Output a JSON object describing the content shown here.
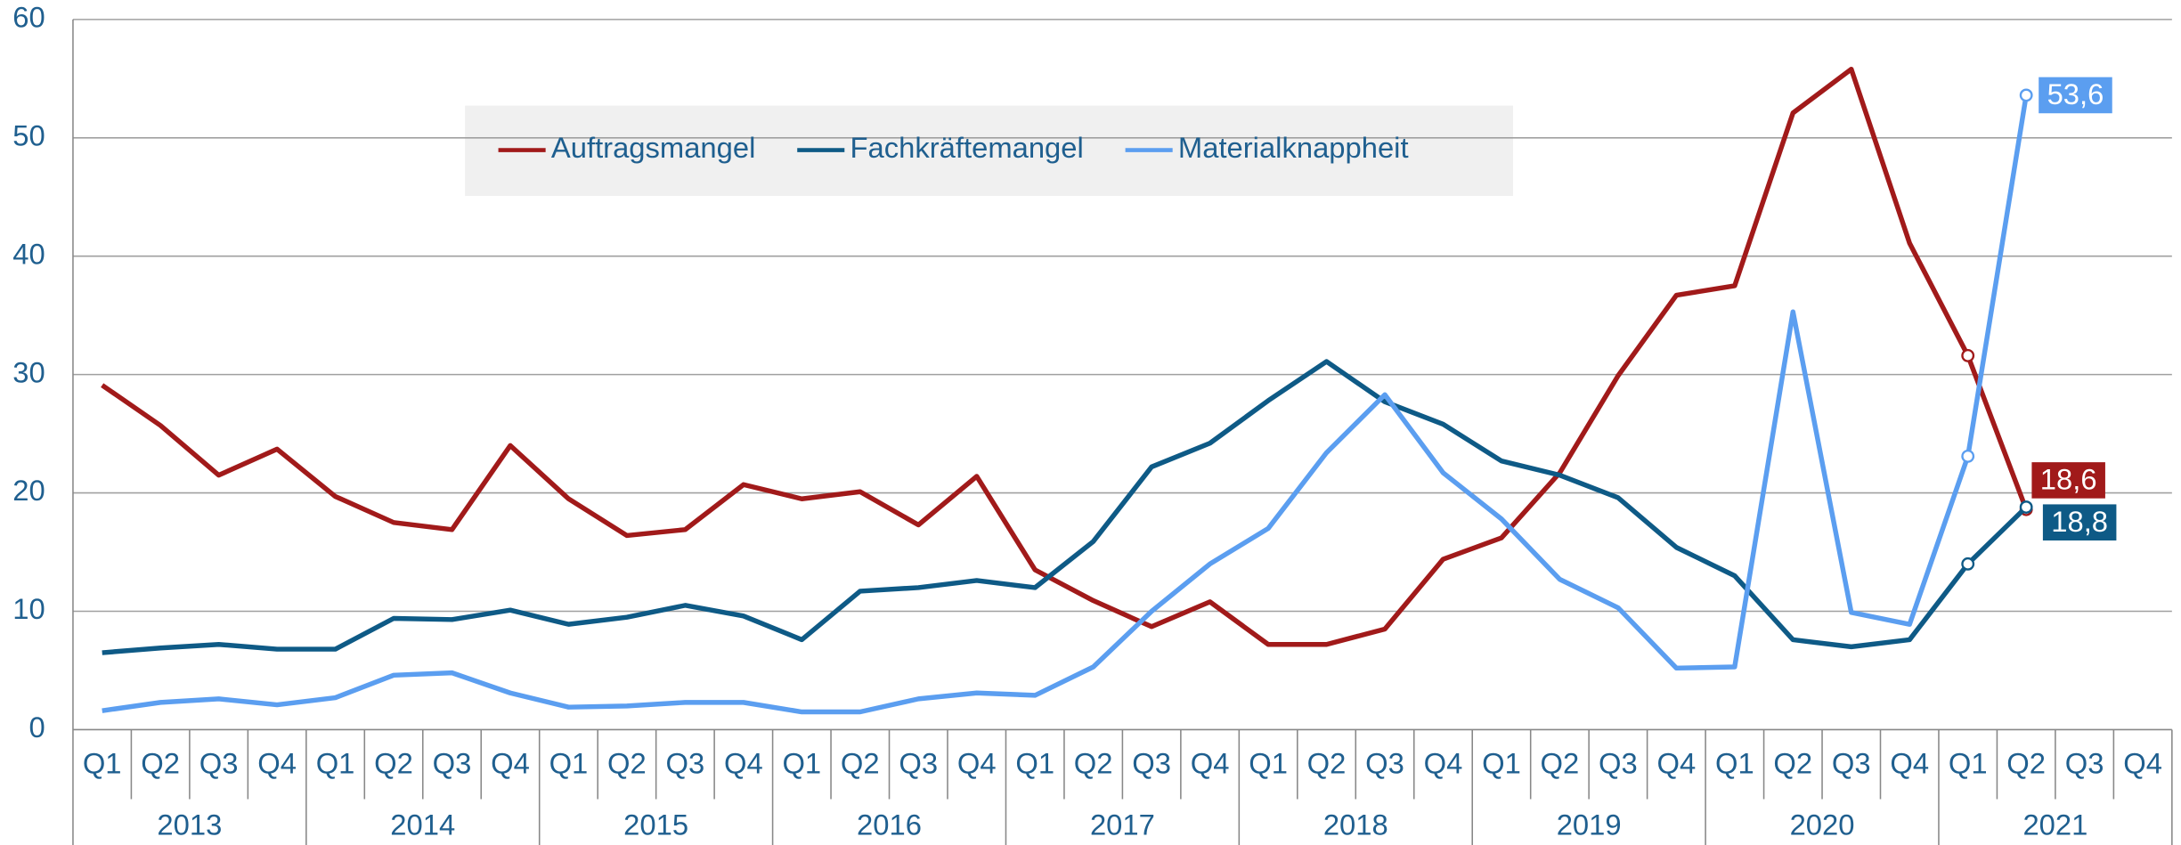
{
  "chart_data": {
    "type": "line",
    "categories": [
      "Q1",
      "Q2",
      "Q3",
      "Q4",
      "Q1",
      "Q2",
      "Q3",
      "Q4",
      "Q1",
      "Q2",
      "Q3",
      "Q4",
      "Q1",
      "Q2",
      "Q3",
      "Q4",
      "Q1",
      "Q2",
      "Q3",
      "Q4",
      "Q1",
      "Q2",
      "Q3",
      "Q4",
      "Q1",
      "Q2",
      "Q3",
      "Q4",
      "Q1",
      "Q2",
      "Q3",
      "Q4",
      "Q1",
      "Q2",
      "Q3",
      "Q4"
    ],
    "years": [
      "2013",
      "2014",
      "2015",
      "2016",
      "2017",
      "2018",
      "2019",
      "2020",
      "2021"
    ],
    "series": [
      {
        "name": "Auftragsmangel",
        "color": "#a11a1a",
        "values": [
          29.1,
          25.7,
          21.5,
          23.7,
          19.7,
          17.5,
          16.9,
          24.0,
          19.5,
          16.4,
          16.9,
          20.7,
          19.5,
          20.1,
          17.3,
          21.4,
          13.5,
          10.9,
          8.7,
          10.8,
          7.2,
          7.2,
          8.5,
          14.4,
          16.2,
          21.7,
          29.9,
          36.7,
          37.5,
          52.1,
          55.8,
          41.1,
          31.6,
          18.6,
          null,
          null
        ],
        "value_labels": [
          null,
          null,
          null,
          null,
          null,
          null,
          null,
          null,
          null,
          null,
          null,
          null,
          null,
          null,
          null,
          null,
          null,
          null,
          null,
          null,
          null,
          null,
          null,
          null,
          null,
          null,
          null,
          null,
          null,
          null,
          null,
          null,
          null,
          "18,6",
          null,
          null
        ]
      },
      {
        "name": "Fachkräftemangel",
        "color": "#0e5a86",
        "values": [
          6.5,
          6.9,
          7.2,
          6.8,
          6.8,
          9.4,
          9.3,
          10.1,
          8.9,
          9.5,
          10.5,
          9.6,
          7.6,
          11.7,
          12.0,
          12.6,
          12.0,
          15.9,
          22.2,
          24.2,
          27.8,
          31.1,
          27.7,
          25.8,
          22.7,
          21.5,
          19.6,
          15.4,
          13.0,
          7.6,
          7.0,
          7.6,
          14.0,
          18.8,
          null,
          null
        ],
        "value_labels": [
          null,
          null,
          null,
          null,
          null,
          null,
          null,
          null,
          null,
          null,
          null,
          null,
          null,
          null,
          null,
          null,
          null,
          null,
          null,
          null,
          null,
          null,
          null,
          null,
          null,
          null,
          null,
          null,
          null,
          null,
          null,
          null,
          null,
          "18,8",
          null,
          null
        ]
      },
      {
        "name": "Materialknappheit",
        "color": "#5b9ef0",
        "values": [
          1.6,
          2.3,
          2.6,
          2.1,
          2.7,
          4.6,
          4.8,
          3.1,
          1.9,
          2.0,
          2.3,
          2.3,
          1.5,
          1.5,
          2.6,
          3.1,
          2.9,
          5.3,
          10.0,
          14.0,
          17.0,
          23.4,
          28.3,
          21.7,
          17.8,
          12.7,
          10.3,
          5.2,
          5.3,
          35.3,
          9.9,
          8.9,
          23.1,
          53.6,
          null,
          null
        ],
        "value_labels": [
          null,
          null,
          null,
          null,
          null,
          null,
          null,
          null,
          null,
          null,
          null,
          null,
          null,
          null,
          null,
          null,
          null,
          null,
          null,
          null,
          null,
          null,
          null,
          null,
          null,
          null,
          null,
          null,
          null,
          null,
          null,
          null,
          null,
          "53,6",
          null,
          null
        ]
      }
    ],
    "ylim": [
      0,
      60
    ],
    "yticks": [
      0,
      10,
      20,
      30,
      40,
      50,
      60
    ],
    "grid": true
  }
}
